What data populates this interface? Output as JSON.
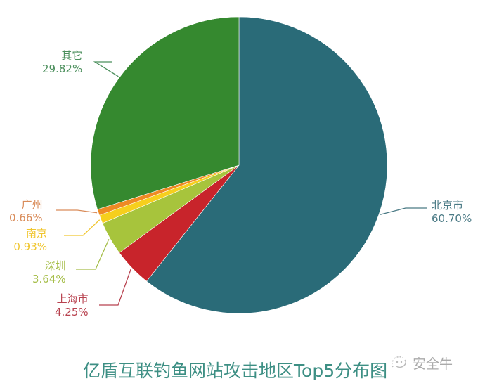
{
  "chart_data": {
    "type": "pie",
    "title": "亿盾互联钓鱼网站攻击地区Top5分布图",
    "start_angle_deg": 0,
    "direction": "clockwise",
    "slices": [
      {
        "label": "北京市",
        "value": 60.7,
        "value_label": "60.70%",
        "color": "#2a6b78",
        "label_color": "#4a7a85"
      },
      {
        "label": "上海市",
        "value": 4.25,
        "value_label": "4.25%",
        "color": "#c8242b",
        "label_color": "#b8424f"
      },
      {
        "label": "深圳",
        "value": 3.64,
        "value_label": "3.64%",
        "color": "#a7c43c",
        "label_color": "#a6be4a"
      },
      {
        "label": "南京",
        "value": 0.93,
        "value_label": "0.93%",
        "color": "#f6cf1d",
        "label_color": "#f0c630"
      },
      {
        "label": "广州",
        "value": 0.66,
        "value_label": "0.66%",
        "color": "#ee8a24",
        "label_color": "#d98c5a"
      },
      {
        "label": "其它",
        "value": 29.82,
        "value_label": "29.82%",
        "color": "#35892f",
        "label_color": "#4b8f5c"
      }
    ],
    "legend": "none (callout labels)"
  },
  "header": {
    "title": "亿盾互联钓鱼网站攻击地区Top5分布图"
  },
  "watermark": {
    "icon": "wechat-icon",
    "text": "安全牛"
  }
}
